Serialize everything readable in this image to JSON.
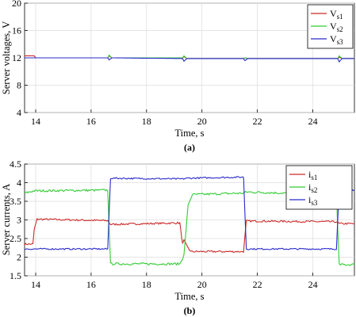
{
  "chart_data": [
    {
      "type": "line",
      "panel_label": "(a)",
      "xlabel": "Time, s",
      "ylabel": "Server voltages, V",
      "xlim": [
        13.6,
        25.5
      ],
      "ylim": [
        4,
        20
      ],
      "xticks": [
        14,
        16,
        18,
        20,
        22,
        24
      ],
      "yticks": [
        4,
        8,
        12,
        16,
        20
      ],
      "grid": true,
      "legend_position": "top-right",
      "series": [
        {
          "name": "V",
          "subscript": "s1",
          "color": "#cc2a2a",
          "x": [
            13.6,
            13.95,
            14.0,
            16.6,
            16.65,
            16.75,
            19.3,
            19.35,
            19.45,
            21.5,
            21.55,
            21.65,
            24.9,
            24.95,
            25.05,
            25.5
          ],
          "y": [
            12.3,
            12.3,
            12.0,
            12.0,
            12.3,
            12.0,
            12.0,
            12.2,
            11.9,
            11.9,
            12.0,
            11.9,
            11.9,
            12.1,
            11.9,
            11.9
          ]
        },
        {
          "name": "V",
          "subscript": "s2",
          "color": "#33cc33",
          "x": [
            13.6,
            16.6,
            16.65,
            16.75,
            19.3,
            19.35,
            19.45,
            21.5,
            21.55,
            21.65,
            24.9,
            24.95,
            25.05,
            25.5
          ],
          "y": [
            12.0,
            12.0,
            12.4,
            12.0,
            12.0,
            12.3,
            11.9,
            11.9,
            12.0,
            11.9,
            11.9,
            12.3,
            11.9,
            11.9
          ]
        },
        {
          "name": "V",
          "subscript": "s3",
          "color": "#2a2acc",
          "x": [
            13.6,
            16.6,
            16.65,
            16.75,
            19.3,
            19.35,
            19.45,
            21.5,
            21.55,
            21.65,
            24.9,
            24.95,
            25.05,
            25.5
          ],
          "y": [
            12.0,
            12.0,
            11.7,
            12.0,
            11.9,
            11.5,
            11.9,
            11.9,
            11.6,
            11.9,
            11.9,
            11.4,
            11.9,
            11.9
          ]
        }
      ]
    },
    {
      "type": "line",
      "panel_label": "(b)",
      "xlabel": "Time, s",
      "ylabel": "Server currents, A",
      "xlim": [
        13.6,
        25.5
      ],
      "ylim": [
        1.5,
        4.5
      ],
      "xticks": [
        14,
        16,
        18,
        20,
        22,
        24
      ],
      "yticks": [
        1.5,
        2,
        2.5,
        3,
        3.5,
        4,
        4.5
      ],
      "grid": true,
      "legend_position": "top-right",
      "series": [
        {
          "name": "i",
          "subscript": "s1",
          "color": "#cc2a2a",
          "x": [
            13.6,
            13.9,
            13.95,
            14.05,
            16.6,
            16.7,
            18.0,
            19.2,
            19.3,
            19.35,
            19.45,
            19.6,
            21.5,
            21.6,
            24.85,
            24.95,
            25.5
          ],
          "y": [
            2.35,
            2.35,
            2.75,
            3.02,
            2.98,
            2.88,
            2.9,
            2.92,
            2.35,
            2.45,
            2.3,
            2.15,
            2.15,
            2.97,
            2.95,
            2.9,
            2.9
          ],
          "noise": 0.025
        },
        {
          "name": "i",
          "subscript": "s2",
          "color": "#33cc33",
          "x": [
            13.6,
            13.95,
            16.6,
            16.7,
            19.2,
            19.35,
            19.5,
            19.65,
            21.5,
            21.6,
            24.85,
            24.95,
            25.5
          ],
          "y": [
            3.72,
            3.78,
            3.8,
            1.82,
            1.82,
            2.05,
            3.4,
            3.68,
            3.72,
            3.75,
            3.68,
            1.8,
            1.8
          ],
          "noise": 0.03
        },
        {
          "name": "i",
          "subscript": "s3",
          "color": "#2a2acc",
          "x": [
            13.6,
            16.6,
            16.7,
            19.3,
            19.45,
            21.5,
            21.6,
            24.85,
            24.95,
            25.5
          ],
          "y": [
            2.22,
            2.22,
            4.12,
            4.1,
            4.12,
            4.15,
            2.22,
            2.22,
            3.85,
            3.8
          ],
          "noise": 0.02
        }
      ]
    }
  ]
}
